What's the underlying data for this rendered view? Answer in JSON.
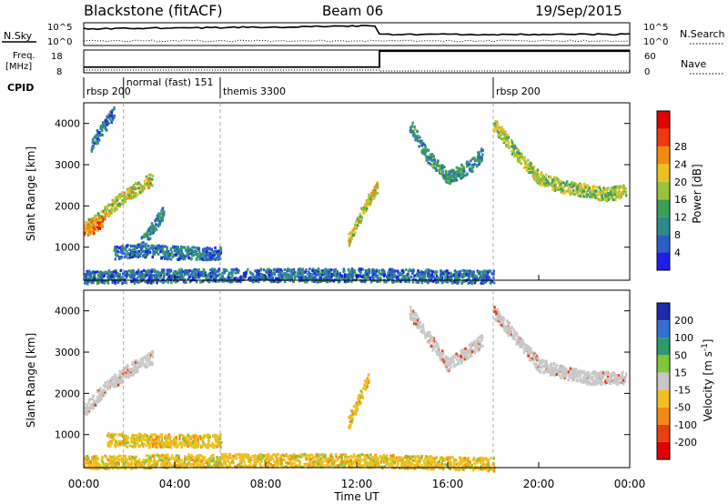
{
  "header": {
    "station": "Blackstone (fitACF)",
    "beam": "Beam 06",
    "date": "19/Sep/2015"
  },
  "top_panels": {
    "nsky_label": "N.Sky",
    "nsky_ticks": [
      "10^5",
      "10^0"
    ],
    "nsearch_label": "N.Search",
    "nsearch_ticks": [
      "10^5",
      "10^0"
    ],
    "freq_label_1": "Freq.",
    "freq_label_2": "[MHz]",
    "freq_ticks": [
      "18",
      "8"
    ],
    "nave_label": "Nave",
    "nave_ticks": [
      "60",
      "0"
    ],
    "cpid_label": "CPID",
    "cpid_segments": [
      {
        "label": "rbsp 200",
        "t_start": 0.0
      },
      {
        "label": "normal (fast) 151",
        "t_start": 1.75
      },
      {
        "label": "themis 3300",
        "t_start": 6.0
      },
      {
        "label": "rbsp 200",
        "t_start": 18.0
      }
    ]
  },
  "power_panel": {
    "ylabel": "Slant Range [km]",
    "yticks": [
      "1000",
      "2000",
      "3000",
      "4000"
    ],
    "colorbar_title": "Power [dB]",
    "colorbar_ticks": [
      "4",
      "8",
      "12",
      "16",
      "20",
      "24",
      "28"
    ],
    "colors": [
      "#1e1ee8",
      "#2a5fc4",
      "#2e8a8a",
      "#3aa05a",
      "#9ac23a",
      "#f0c020",
      "#f08a10",
      "#ee3a10",
      "#e00000"
    ]
  },
  "velocity_panel": {
    "ylabel": "Slant Range [km]",
    "yticks": [
      "1000",
      "2000",
      "3000",
      "4000"
    ],
    "colorbar_title": "Velocity [m s^-1]",
    "colorbar_ticks": [
      "200",
      "100",
      "50",
      "15",
      "-15",
      "-50",
      "-100",
      "-200"
    ],
    "colors": [
      "#1e2aa8",
      "#2f6fd0",
      "#2f9a70",
      "#7dc83a",
      "#c8c8c8",
      "#f0c020",
      "#f08a10",
      "#e84010",
      "#e00000"
    ]
  },
  "x_axis": {
    "xlabel": "Time UT",
    "xticks": [
      "00:00",
      "04:00",
      "08:00",
      "12:00",
      "16:00",
      "20:00",
      "00:00"
    ]
  },
  "chart_data": {
    "type": "heatmap",
    "title": "Blackstone (fitACF)",
    "subtitle": "Beam 06 19/Sep/2015",
    "xlabel": "Time UT",
    "ylabel": "Slant Range [km]",
    "xlim": [
      0,
      24
    ],
    "ylim": [
      200,
      4500
    ],
    "frequency_MHz": [
      {
        "t_start": 0.0,
        "t_end": 13.0,
        "value": 10.5
      },
      {
        "t_start": 13.0,
        "t_end": 24.0,
        "value": 17.5
      }
    ],
    "power_echo_regions": [
      {
        "name": "rising echo band",
        "t": [
          0.0,
          0.5,
          1.0,
          1.5,
          2.0,
          2.5,
          3.0
        ],
        "range_km": [
          1500,
          1650,
          1900,
          2150,
          2350,
          2500,
          2700
        ],
        "power_dB": 18
      },
      {
        "name": "strong near-range echoes",
        "t": [
          0.0,
          0.4,
          0.8
        ],
        "range_km": [
          1450,
          1500,
          1650
        ],
        "power_dB": 26
      },
      {
        "name": "early far echoes",
        "t": [
          0.3,
          0.8,
          1.3
        ],
        "range_km": [
          3500,
          3900,
          4300
        ],
        "power_dB": 6
      },
      {
        "name": "near echoes",
        "t": [
          1.3,
          2.5,
          3.5,
          4.5,
          5.5,
          6.0
        ],
        "range_km": [
          900,
          950,
          900,
          880,
          870,
          880
        ],
        "power_dB": 6
      },
      {
        "name": "slanted patch",
        "t": [
          2.5,
          3.0,
          3.5
        ],
        "range_km": [
          1100,
          1500,
          1900
        ],
        "power_dB": 8
      },
      {
        "name": "midday rise",
        "t": [
          11.6,
          12.0,
          12.4,
          12.9
        ],
        "range_km": [
          1200,
          1600,
          2100,
          2500
        ],
        "power_dB": 18
      },
      {
        "name": "afternoon far echoes",
        "t": [
          14.3,
          15.0,
          16.0,
          17.0,
          17.5
        ],
        "range_km": [
          4000,
          3300,
          2700,
          3000,
          3300
        ],
        "power_dB": 10
      },
      {
        "name": "evening descending band",
        "t": [
          18.0,
          19.0,
          20.0,
          21.0,
          22.0,
          23.0,
          23.8
        ],
        "range_km": [
          4000,
          3300,
          2700,
          2500,
          2400,
          2300,
          2400
        ],
        "power_dB": 16
      },
      {
        "name": "ground-near clutter",
        "t": [
          0.0,
          6.0,
          12.0,
          18.0
        ],
        "range_km": [
          300,
          350,
          350,
          300
        ],
        "power_dB": 6
      }
    ],
    "velocity_echo_regions": [
      {
        "name": "rising echo band",
        "t": [
          0.0,
          1.0,
          2.0,
          3.0
        ],
        "range_km": [
          1600,
          2200,
          2600,
          2900
        ],
        "velocity_ms": 0
      },
      {
        "name": "near echoes",
        "t": [
          1.0,
          3.0,
          6.0
        ],
        "range_km": [
          900,
          880,
          870
        ],
        "velocity_ms": -30
      },
      {
        "name": "ground scatter band",
        "t": [
          0.0,
          6.0,
          12.0,
          18.0
        ],
        "range_km": [
          350,
          400,
          400,
          300
        ],
        "velocity_ms": -40
      },
      {
        "name": "midday patch",
        "t": [
          11.6,
          12.5
        ],
        "range_km": [
          1300,
          2400
        ],
        "velocity_ms": -60
      },
      {
        "name": "afternoon far echoes",
        "t": [
          14.3,
          16.0,
          17.5
        ],
        "range_km": [
          4000,
          2700,
          3300
        ],
        "velocity_ms": 0
      },
      {
        "name": "evening descending band",
        "t": [
          18.0,
          20.0,
          22.0,
          23.8
        ],
        "range_km": [
          4000,
          2700,
          2400,
          2400
        ],
        "velocity_ms": 0
      }
    ]
  }
}
